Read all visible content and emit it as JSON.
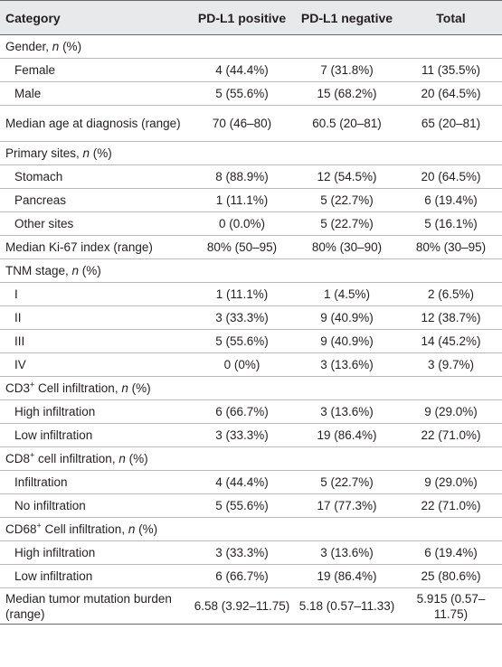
{
  "header": {
    "category": "Category",
    "pos": "PD-L1 positive",
    "neg": "PD-L1 negative",
    "total": "Total"
  },
  "rows": [
    {
      "pre": "Gender, ",
      "it": "n",
      "post": " (%)",
      "sub": false,
      "v": [
        "",
        "",
        ""
      ]
    },
    {
      "pre": "Female",
      "sub": true,
      "v": [
        "4 (44.4%)",
        "7 (31.8%)",
        "11 (35.5%)"
      ]
    },
    {
      "pre": "Male",
      "sub": true,
      "v": [
        "5 (55.6%)",
        "15 (68.2%)",
        "20 (64.5%)"
      ]
    },
    {
      "pre": "Median age at diagnosis (range)",
      "tall": true,
      "sub": false,
      "v": [
        "70 (46–80)",
        "60.5 (20–81)",
        "65 (20–81)"
      ]
    },
    {
      "pre": "Primary sites, ",
      "it": "n",
      "post": " (%)",
      "sub": false,
      "v": [
        "",
        "",
        ""
      ]
    },
    {
      "pre": "Stomach",
      "sub": true,
      "v": [
        "8 (88.9%)",
        "12 (54.5%)",
        "20 (64.5%)"
      ]
    },
    {
      "pre": "Pancreas",
      "sub": true,
      "v": [
        "1 (11.1%)",
        "5 (22.7%)",
        "6 (19.4%)"
      ]
    },
    {
      "pre": "Other sites",
      "sub": true,
      "v": [
        "0 (0.0%)",
        "5 (22.7%)",
        "5 (16.1%)"
      ]
    },
    {
      "pre": "Median Ki-67 index (range)",
      "sub": false,
      "v": [
        "80% (50–95)",
        "80% (30–90)",
        "80% (30–95)"
      ]
    },
    {
      "pre": "TNM stage, ",
      "it": "n",
      "post": " (%)",
      "sub": false,
      "v": [
        "",
        "",
        ""
      ]
    },
    {
      "pre": "I",
      "sub": true,
      "v": [
        "1 (11.1%)",
        "1 (4.5%)",
        "2 (6.5%)"
      ]
    },
    {
      "pre": "II",
      "sub": true,
      "v": [
        "3 (33.3%)",
        "9 (40.9%)",
        "12 (38.7%)"
      ]
    },
    {
      "pre": "III",
      "sub": true,
      "v": [
        "5 (55.6%)",
        "9 (40.9%)",
        "14 (45.2%)"
      ]
    },
    {
      "pre": "IV",
      "sub": true,
      "v": [
        "0 (0%)",
        "3 (13.6%)",
        "3 (9.7%)"
      ]
    },
    {
      "pre": "CD3",
      "sup": "+",
      "mid": " Cell infiltration, ",
      "it": "n",
      "post": " (%)",
      "sub": false,
      "v": [
        "",
        "",
        ""
      ]
    },
    {
      "pre": "High infiltration",
      "sub": true,
      "v": [
        "6 (66.7%)",
        "3 (13.6%)",
        "9 (29.0%)"
      ]
    },
    {
      "pre": "Low infiltration",
      "sub": true,
      "v": [
        "3 (33.3%)",
        "19 (86.4%)",
        "22 (71.0%)"
      ]
    },
    {
      "pre": "CD8",
      "sup": "+",
      "mid": " cell infiltration, ",
      "it": "n",
      "post": " (%)",
      "sub": false,
      "v": [
        "",
        "",
        ""
      ]
    },
    {
      "pre": "Infiltration",
      "sub": true,
      "v": [
        "4 (44.4%)",
        "5 (22.7%)",
        "9 (29.0%)"
      ]
    },
    {
      "pre": "No infiltration",
      "sub": true,
      "v": [
        "5 (55.6%)",
        "17 (77.3%)",
        "22 (71.0%)"
      ]
    },
    {
      "pre": "CD68",
      "sup": "+",
      "mid": " Cell infiltration, ",
      "it": "n",
      "post": " (%)",
      "sub": false,
      "v": [
        "",
        "",
        ""
      ]
    },
    {
      "pre": "High infiltration",
      "sub": true,
      "v": [
        "3 (33.3%)",
        "3 (13.6%)",
        "6 (19.4%)"
      ]
    },
    {
      "pre": "Low infiltration",
      "sub": true,
      "v": [
        "6 (66.7%)",
        "19 (86.4%)",
        "25 (80.6%)"
      ]
    },
    {
      "pre": "Median tumor mutation burden (range)",
      "tall": true,
      "sub": false,
      "v": [
        "6.58 (3.92–11.75)",
        "5.18 (0.57–11.33)",
        "5.915 (0.57–11.75)"
      ]
    }
  ]
}
